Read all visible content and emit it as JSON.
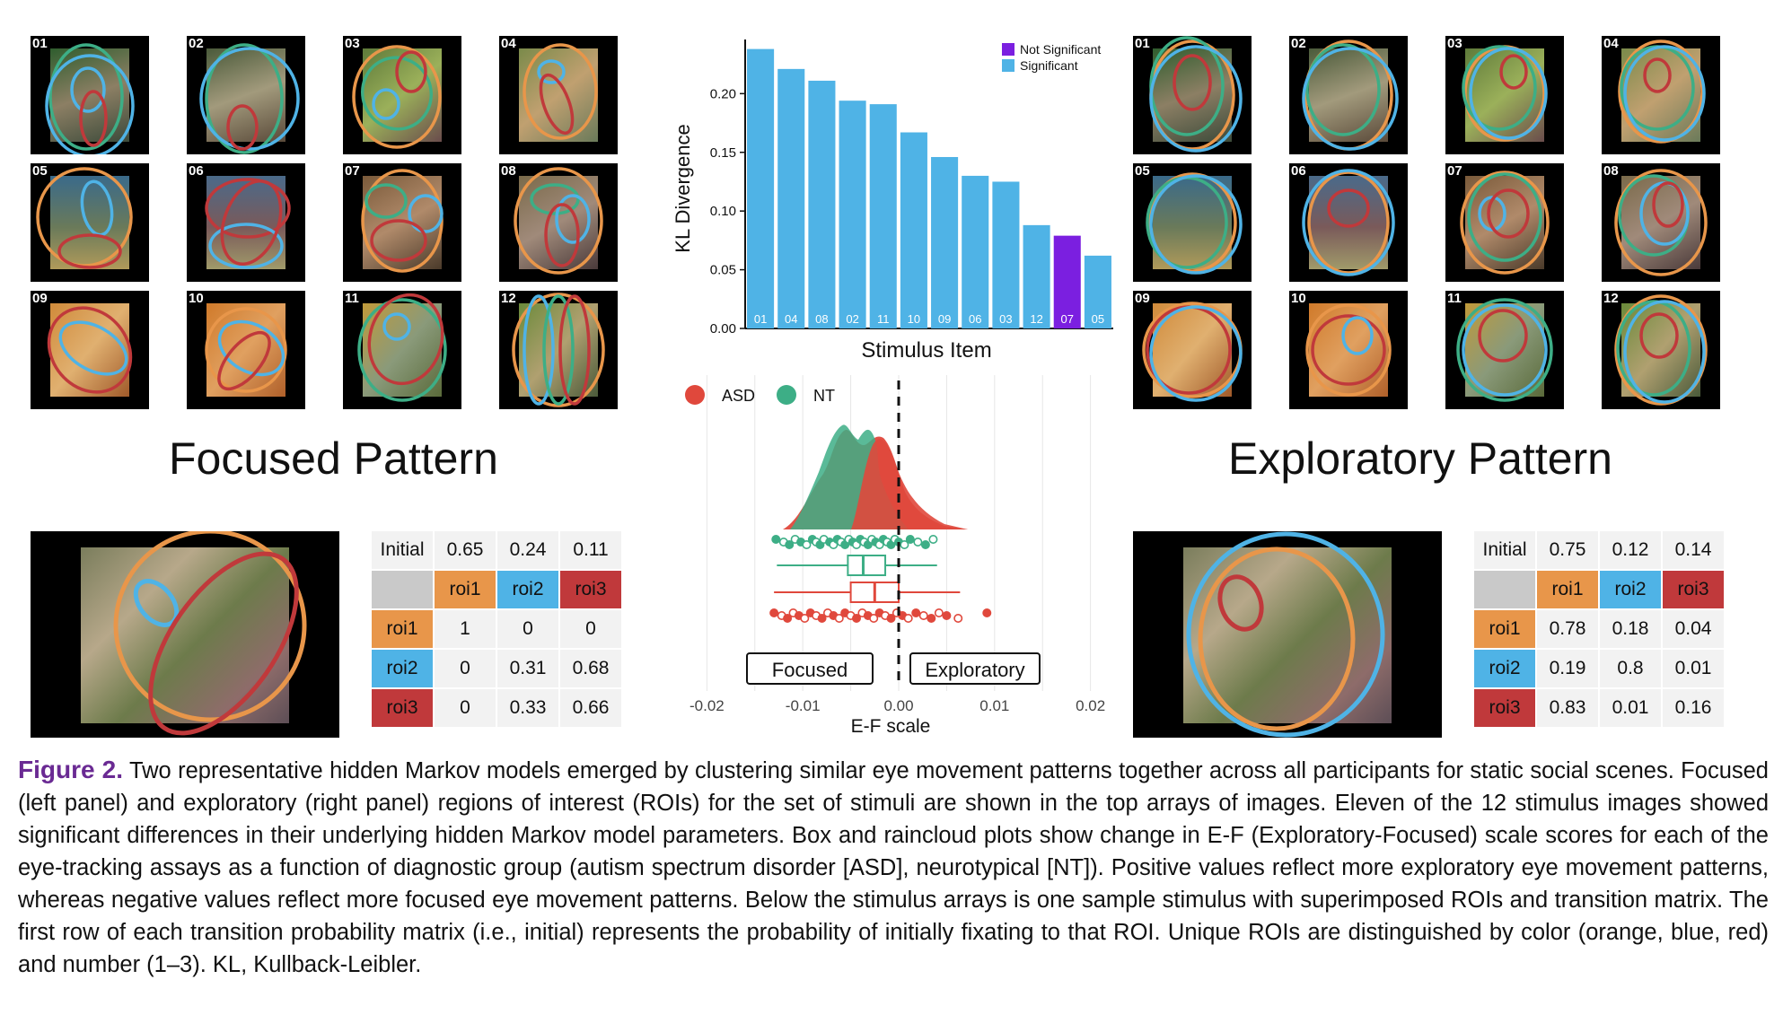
{
  "left_panel": {
    "title": "Focused Pattern",
    "thumbnails": [
      "01",
      "02",
      "03",
      "04",
      "05",
      "06",
      "07",
      "08",
      "09",
      "10",
      "11",
      "12"
    ],
    "matrix": {
      "initial_label": "Initial",
      "initial": [
        "0.65",
        "0.24",
        "0.11"
      ],
      "cols": [
        "roi1",
        "roi2",
        "roi3"
      ],
      "rows": [
        {
          "label": "roi1",
          "values": [
            "1",
            "0",
            "0"
          ]
        },
        {
          "label": "roi2",
          "values": [
            "0",
            "0.31",
            "0.68"
          ]
        },
        {
          "label": "roi3",
          "values": [
            "0",
            "0.33",
            "0.66"
          ]
        }
      ]
    }
  },
  "right_panel": {
    "title": "Exploratory Pattern",
    "thumbnails": [
      "01",
      "02",
      "03",
      "04",
      "05",
      "06",
      "07",
      "08",
      "09",
      "10",
      "11",
      "12"
    ],
    "matrix": {
      "initial_label": "Initial",
      "initial": [
        "0.75",
        "0.12",
        "0.14"
      ],
      "cols": [
        "roi1",
        "roi2",
        "roi3"
      ],
      "rows": [
        {
          "label": "roi1",
          "values": [
            "0.78",
            "0.18",
            "0.04"
          ]
        },
        {
          "label": "roi2",
          "values": [
            "0.19",
            "0.8",
            "0.01"
          ]
        },
        {
          "label": "roi3",
          "values": [
            "0.83",
            "0.01",
            "0.16"
          ]
        }
      ]
    }
  },
  "chart_data": [
    {
      "type": "bar",
      "title": "",
      "xlabel": "Stimulus Item",
      "ylabel": "KL Divergence",
      "ylim": [
        0,
        0.24
      ],
      "yticks": [
        "0.00",
        "0.05",
        "0.10",
        "0.15",
        "0.20"
      ],
      "categories": [
        "01",
        "04",
        "08",
        "02",
        "11",
        "10",
        "09",
        "06",
        "03",
        "12",
        "07",
        "05"
      ],
      "values": [
        0.238,
        0.221,
        0.211,
        0.194,
        0.191,
        0.167,
        0.146,
        0.13,
        0.125,
        0.088,
        0.079,
        0.062
      ],
      "significance": [
        "Significant",
        "Significant",
        "Significant",
        "Significant",
        "Significant",
        "Significant",
        "Significant",
        "Significant",
        "Significant",
        "Significant",
        "Not Significant",
        "Significant"
      ],
      "legend": [
        {
          "name": "Not Significant",
          "color": "#7b1fe0"
        },
        {
          "name": "Significant",
          "color": "#4fb3e6"
        }
      ],
      "legend_position": "top-right"
    },
    {
      "type": "raincloud",
      "title": "",
      "xlabel": "E-F scale",
      "xlim": [
        -0.022,
        0.022
      ],
      "xticks": [
        "-0.02",
        "-0.01",
        "0.00",
        "0.01",
        "0.02"
      ],
      "reference_line": 0.0,
      "legend": [
        {
          "name": "ASD",
          "color": "#e0483c"
        },
        {
          "name": "NT",
          "color": "#3dae86"
        }
      ],
      "legend_position": "top-left",
      "annotations": [
        "Focused",
        "Exploratory"
      ],
      "series": [
        {
          "name": "NT",
          "color": "#3dae86",
          "box": {
            "q1": -0.0053,
            "median": -0.0037,
            "q3": -0.0014,
            "whisker_low": -0.0127,
            "whisker_high": 0.004
          }
        },
        {
          "name": "ASD",
          "color": "#e0483c",
          "box": {
            "q1": -0.005,
            "median": -0.0025,
            "q3": -0.0,
            "whisker_low": -0.013,
            "whisker_high": 0.0064
          }
        }
      ]
    }
  ],
  "caption": {
    "label": "Figure 2.",
    "text": "Two representative hidden Markov models emerged by clustering similar eye movement patterns together across all participants for static social scenes. Focused (left panel) and exploratory (right panel) regions of interest (ROIs) for the set of stimuli are shown in the top arrays of images. Eleven of the 12 stimulus images showed significant differences in their underlying hidden Markov model parameters. Box and raincloud plots show change in E-F (Exploratory-Focused) scale scores for each of the eye-tracking assays as a function of diagnostic group (autism spectrum disorder [ASD], neurotypical [NT]). Positive values reflect more exploratory eye movement patterns, whereas negative values reflect more focused eye movement patterns. Below the stimulus arrays is one sample stimulus with superimposed ROIs and transition matrix. The first row of each transition probability matrix (i.e., initial) represents the probability of initially fixating to that ROI. Unique ROIs are distinguished by color (orange, blue, red) and number (1–3). KL, Kullback-Leibler."
  }
}
